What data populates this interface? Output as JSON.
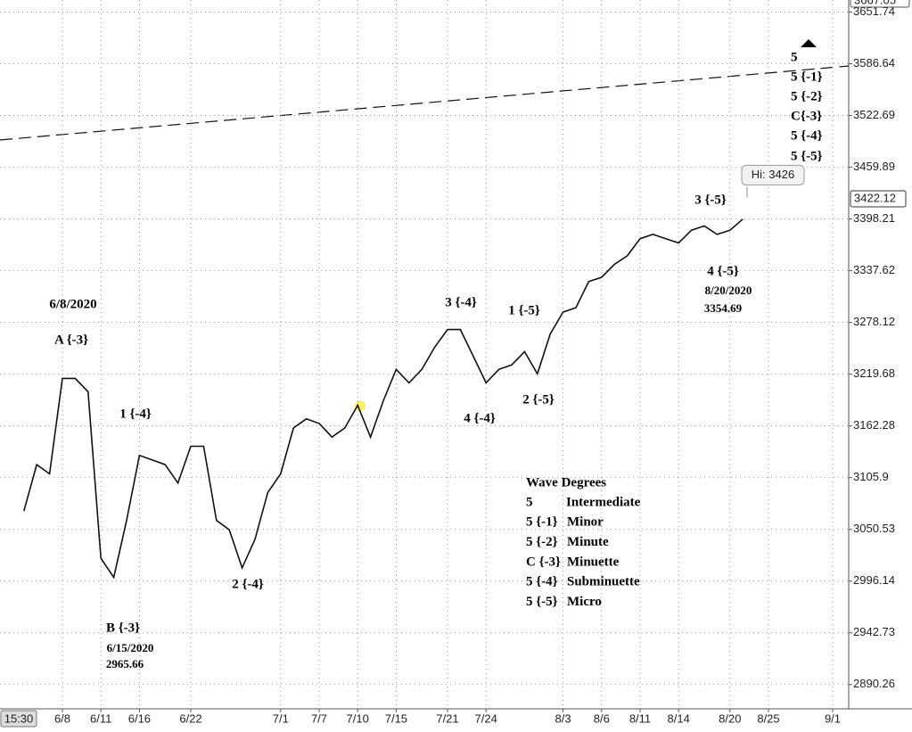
{
  "chart_data": {
    "type": "line",
    "categories": [
      null,
      null,
      null,
      "6/8",
      null,
      null,
      "6/11",
      null,
      null,
      "6/16",
      null,
      null,
      null,
      "6/22",
      null,
      null,
      null,
      null,
      null,
      null,
      "7/1",
      null,
      null,
      "7/7",
      null,
      null,
      "7/10",
      null,
      null,
      "7/15",
      null,
      null,
      null,
      "7/21",
      null,
      null,
      "7/24",
      null,
      null,
      null,
      null,
      null,
      "8/3",
      null,
      null,
      "8/6",
      null,
      null,
      "8/11",
      null,
      null,
      "8/14",
      null,
      null,
      null,
      "8/20",
      null,
      null,
      "8/25",
      null,
      null,
      null,
      null,
      "9/1"
    ],
    "values": [
      3070,
      3120,
      3110,
      3215,
      3215,
      3200,
      3020,
      3000,
      3060,
      3130,
      3125,
      3120,
      3100,
      3140,
      3140,
      3060,
      3050,
      3010,
      3040,
      3090,
      3110,
      3160,
      3170,
      3165,
      3150,
      3160,
      3185,
      3150,
      3190,
      3225,
      3210,
      3225,
      3250,
      3270,
      3270,
      3240,
      3210,
      3225,
      3230,
      3245,
      3220,
      3265,
      3290,
      3295,
      3325,
      3330,
      3345,
      3355,
      3375,
      3380,
      3375,
      3370,
      3385,
      3390,
      3380,
      3385,
      3398,
      null,
      null,
      null,
      null,
      null,
      null,
      null
    ],
    "color": "#111111",
    "ylim": [
      2866,
      3667.05
    ],
    "yticks": [
      3651.74,
      3586.64,
      3522.69,
      3459.89,
      3398.21,
      3337.62,
      3278.12,
      3219.68,
      3162.28,
      3105.9,
      3050.53,
      2996.14,
      2942.73,
      2890.26
    ],
    "log_scale": true,
    "grid": true,
    "last_price": 3422.12,
    "high": {
      "value": 3426,
      "label": "Hi: 3426"
    },
    "time_label": "15:30",
    "annotations": [
      "6/8/2020",
      "A {-3}",
      "1 {-4}",
      "B {-3}",
      "6/15/2020",
      "2965.66",
      "2 {-4}",
      "3 {-4}",
      "4 {-4}",
      "1 {-5}",
      "2 {-5}",
      "3 {-5}",
      "4 {-5}",
      "8/20/2020",
      "3354.69",
      "5",
      "5 {-1}",
      "5 {-2}",
      "C{-3}",
      "5 {-4}",
      "5 {-5}"
    ],
    "legend": {
      "title": "Wave Degrees",
      "rows": [
        [
          "5",
          "Intermediate"
        ],
        [
          "5 {-1}",
          "Minor"
        ],
        [
          "5 {-2}",
          "Minute"
        ],
        [
          "C {-3}",
          "Minuette"
        ],
        [
          "5 {-4}",
          "Subminuette"
        ],
        [
          "5 {-5}",
          "Micro"
        ]
      ]
    }
  }
}
